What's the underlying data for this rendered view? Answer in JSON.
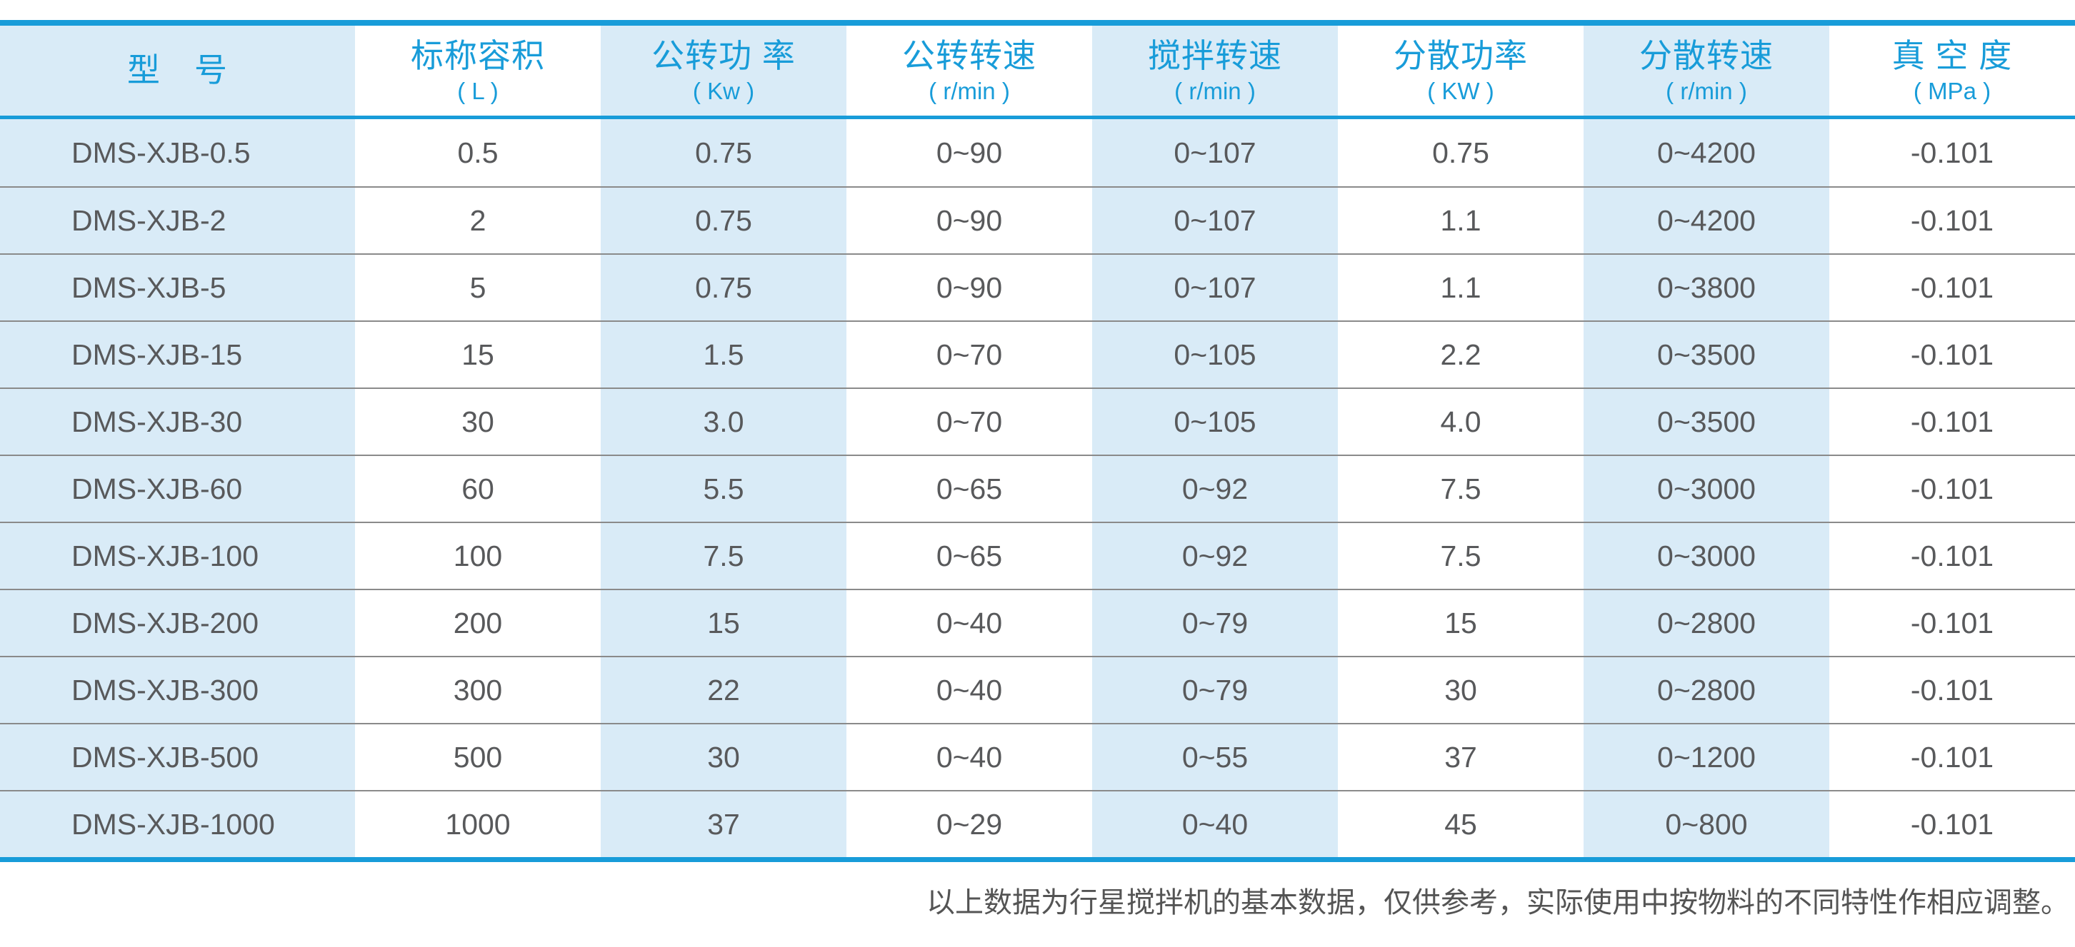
{
  "table": {
    "columns": [
      {
        "title": "型　号",
        "unit": ""
      },
      {
        "title": "标称容积",
        "unit": "( L )"
      },
      {
        "title": "公转功 率",
        "unit": "( Kw )"
      },
      {
        "title": "公转转速",
        "unit": "( r/min )"
      },
      {
        "title": "搅拌转速",
        "unit": "( r/min )"
      },
      {
        "title": "分散功率",
        "unit": "( KW )"
      },
      {
        "title": "分散转速",
        "unit": "( r/min )"
      },
      {
        "title": "真 空 度",
        "unit": "( MPa )"
      }
    ],
    "rows": [
      [
        "DMS-XJB-0.5",
        "0.5",
        "0.75",
        "0~90",
        "0~107",
        "0.75",
        "0~4200",
        "-0.101"
      ],
      [
        "DMS-XJB-2",
        "2",
        "0.75",
        "0~90",
        "0~107",
        "1.1",
        "0~4200",
        "-0.101"
      ],
      [
        "DMS-XJB-5",
        "5",
        "0.75",
        "0~90",
        "0~107",
        "1.1",
        "0~3800",
        "-0.101"
      ],
      [
        "DMS-XJB-15",
        "15",
        "1.5",
        "0~70",
        "0~105",
        "2.2",
        "0~3500",
        "-0.101"
      ],
      [
        "DMS-XJB-30",
        "30",
        "3.0",
        "0~70",
        "0~105",
        "4.0",
        "0~3500",
        "-0.101"
      ],
      [
        "DMS-XJB-60",
        "60",
        "5.5",
        "0~65",
        "0~92",
        "7.5",
        "0~3000",
        "-0.101"
      ],
      [
        "DMS-XJB-100",
        "100",
        "7.5",
        "0~65",
        "0~92",
        "7.5",
        "0~3000",
        "-0.101"
      ],
      [
        "DMS-XJB-200",
        "200",
        "15",
        "0~40",
        "0~79",
        "15",
        "0~2800",
        "-0.101"
      ],
      [
        "DMS-XJB-300",
        "300",
        "22",
        "0~40",
        "0~79",
        "30",
        "0~2800",
        "-0.101"
      ],
      [
        "DMS-XJB-500",
        "500",
        "30",
        "0~40",
        "0~55",
        "37",
        "0~1200",
        "-0.101"
      ],
      [
        "DMS-XJB-1000",
        "1000",
        "37",
        "0~29",
        "0~40",
        "45",
        "0~800",
        "-0.101"
      ]
    ]
  },
  "footer_note": "以上数据为行星搅拌机的基本数据，仅供参考，实际使用中按物料的不同特性作相应调整。",
  "colors": {
    "accent": "#189CD9",
    "stripe": "#D9EBF7",
    "text": "#58595B",
    "row_line": "#8A8A8A",
    "note_text": "#545454"
  }
}
